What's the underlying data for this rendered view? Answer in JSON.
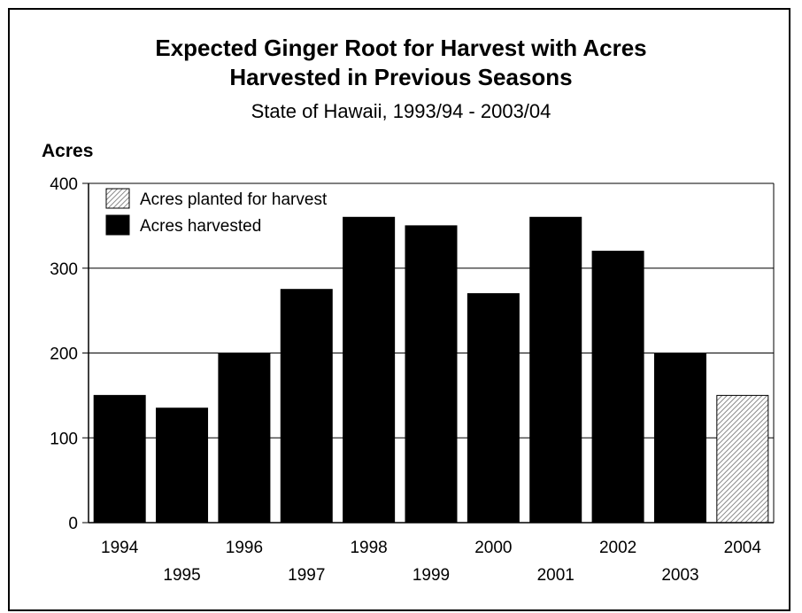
{
  "chart_data": {
    "type": "bar",
    "title_line1": "Expected Ginger Root for Harvest with Acres",
    "title_line2": "Harvested in Previous Seasons",
    "subtitle": "State of Hawaii, 1993/94 - 2003/04",
    "ylabel": "Acres",
    "ylim": [
      0,
      400
    ],
    "yticks": [
      0,
      100,
      200,
      300,
      400
    ],
    "grid": true,
    "legend_position": "top-left",
    "categories": [
      "1994",
      "1995",
      "1996",
      "1997",
      "1998",
      "1999",
      "2000",
      "2001",
      "2002",
      "2003",
      "2004"
    ],
    "series": [
      {
        "name": "Acres planted for harvest",
        "style": "hatched",
        "color": "#bdbdbd",
        "values": [
          null,
          null,
          null,
          null,
          null,
          null,
          null,
          null,
          null,
          null,
          150
        ]
      },
      {
        "name": "Acres harvested",
        "style": "solid",
        "color": "#000000",
        "values": [
          150,
          135,
          200,
          275,
          360,
          350,
          270,
          360,
          320,
          200,
          null
        ]
      }
    ]
  }
}
